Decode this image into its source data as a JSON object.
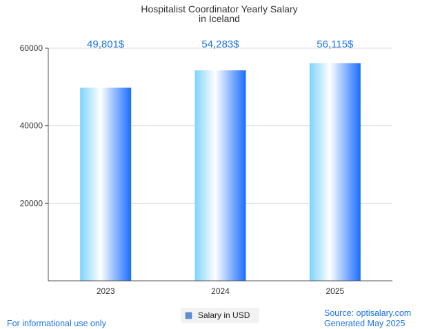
{
  "chart_data": {
    "type": "bar",
    "title": [
      "Hospitalist Coordinator Yearly Salary",
      "in Iceland"
    ],
    "categories": [
      "2023",
      "2024",
      "2025"
    ],
    "series": [
      {
        "name": "Salary in USD",
        "values": [
          49801,
          54283,
          56115
        ],
        "data_labels": [
          "49,801$",
          "54,283$",
          "56,115$"
        ]
      }
    ],
    "ylim": [
      0,
      60000
    ],
    "yticks": [
      20000,
      40000,
      60000
    ],
    "grid": true,
    "legend_position": "bottom-center",
    "colors": {
      "bar_light": "#7fd3ff",
      "bar_mid": "#ffffff",
      "bar_dark": "#1a6dff",
      "label": "#1a73e8",
      "legend_swatch": "#5b8fd6"
    }
  },
  "footer": {
    "left": "For informational use only",
    "source": "Source: optisalary.com",
    "generated": "Generated May 2025"
  }
}
